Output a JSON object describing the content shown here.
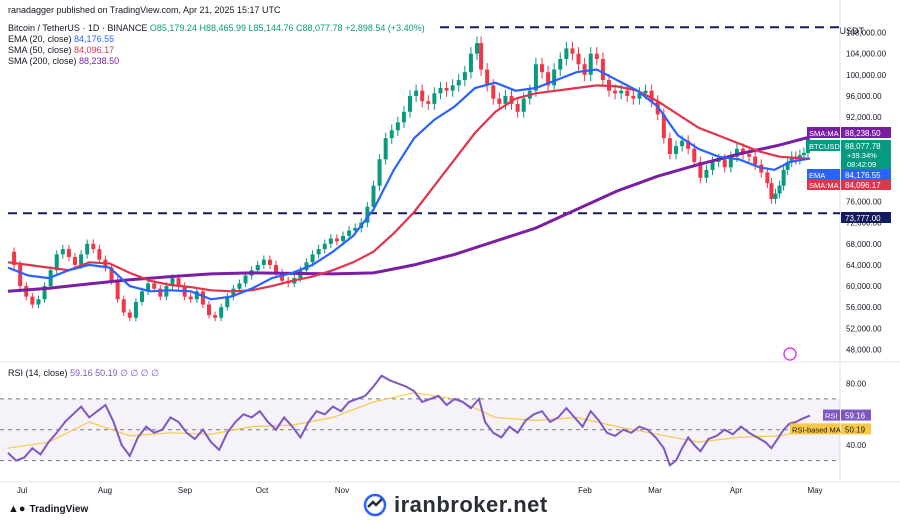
{
  "header": {
    "published": "ranadagger published on TradingView.com, Apr 21, 2025 15:17 UTC",
    "symbol": "Bitcoin / TetherUS · 1D · BINANCE",
    "ohlc": "O85,179.24 H88,465.99 L85,144.76 C88,077.78 +2,898.54 (+3.40%)",
    "ema": "EMA (20, close)",
    "ema_value": "84,176.55",
    "sma50": "SMA (50, close)",
    "sma50_value": "84,096.17",
    "sma200": "SMA (200, close)",
    "sma200_value": "88,238.50",
    "rsi_label": "RSI (14, close)",
    "rsi_values": "59.16 50.19 ∅ ∅ ∅ ∅"
  },
  "axis_unit": "USDT",
  "footer": {
    "brand": "TradingView",
    "watermark": "iranbroker.net"
  },
  "colors": {
    "up": "#089981",
    "down": "#f23645",
    "ema": "#2962ff",
    "sma50": "#e0344b",
    "sma200": "#7b1fa2",
    "rsi": "#7e57c2",
    "rsi_ma": "#f7c948"
  },
  "chart_data": {
    "type": "candlestick",
    "x_labels": [
      "Jul",
      "Aug",
      "Sep",
      "Oct",
      "Nov",
      "Jan",
      "Feb",
      "Mar",
      "Apr",
      "May"
    ],
    "y_ticks": [
      "108,000.00",
      "104,000.00",
      "100,000.00",
      "96,000.00",
      "92,000.00",
      "76,000.00",
      "72,000.00",
      "68,000.00",
      "64,000.00",
      "60,000.00",
      "56,000.00",
      "52,000.00",
      "48,000.00"
    ],
    "ylim": [
      46000,
      110000
    ],
    "support_level": 73777,
    "resistance_level": 109000,
    "price_tags": [
      {
        "label": "SMA:MA",
        "value": "88,238.50",
        "series": "sma200"
      },
      {
        "label": "BTCUSDT",
        "value": "88,077.78",
        "sub1": "+39.34%",
        "sub2": "08:42:09",
        "series": "price"
      },
      {
        "label": "EMA",
        "value": "84,176.55",
        "series": "ema"
      },
      {
        "label": "SMA:MA",
        "value": "84,096.17",
        "series": "sma50"
      },
      {
        "label": "",
        "value": "73,777.00",
        "series": "support"
      }
    ],
    "close_path": [
      [
        0,
        66500
      ],
      [
        6,
        64000
      ],
      [
        12,
        60000
      ],
      [
        18,
        58000
      ],
      [
        24,
        56500
      ],
      [
        30,
        57500
      ],
      [
        36,
        60000
      ],
      [
        42,
        63000
      ],
      [
        48,
        66000
      ],
      [
        54,
        67000
      ],
      [
        60,
        65500
      ],
      [
        66,
        64000
      ],
      [
        72,
        66000
      ],
      [
        78,
        68000
      ],
      [
        84,
        67000
      ],
      [
        90,
        65000
      ],
      [
        96,
        63500
      ],
      [
        102,
        61000
      ],
      [
        108,
        57500
      ],
      [
        114,
        55000
      ],
      [
        120,
        54000
      ],
      [
        126,
        57000
      ],
      [
        132,
        59000
      ],
      [
        138,
        60500
      ],
      [
        144,
        59500
      ],
      [
        150,
        58000
      ],
      [
        156,
        60000
      ],
      [
        162,
        61500
      ],
      [
        168,
        60000
      ],
      [
        174,
        58000
      ],
      [
        180,
        57500
      ],
      [
        186,
        59000
      ],
      [
        192,
        56500
      ],
      [
        198,
        54500
      ],
      [
        204,
        54000
      ],
      [
        210,
        56000
      ],
      [
        216,
        58000
      ],
      [
        222,
        59500
      ],
      [
        228,
        60500
      ],
      [
        234,
        62000
      ],
      [
        240,
        63000
      ],
      [
        246,
        64000
      ],
      [
        252,
        65000
      ],
      [
        258,
        64000
      ],
      [
        264,
        62500
      ],
      [
        270,
        61000
      ],
      [
        276,
        60500
      ],
      [
        282,
        61500
      ],
      [
        288,
        63000
      ],
      [
        294,
        64500
      ],
      [
        300,
        66000
      ],
      [
        306,
        67000
      ],
      [
        312,
        68000
      ],
      [
        318,
        69000
      ],
      [
        324,
        68500
      ],
      [
        330,
        69500
      ],
      [
        336,
        70500
      ],
      [
        342,
        71000
      ],
      [
        348,
        72000
      ],
      [
        354,
        75000
      ],
      [
        360,
        79000
      ],
      [
        366,
        84000
      ],
      [
        372,
        88000
      ],
      [
        378,
        89500
      ],
      [
        384,
        91000
      ],
      [
        390,
        93000
      ],
      [
        396,
        96000
      ],
      [
        402,
        97000
      ],
      [
        408,
        95000
      ],
      [
        414,
        94500
      ],
      [
        420,
        96500
      ],
      [
        426,
        97500
      ],
      [
        432,
        97000
      ],
      [
        438,
        98000
      ],
      [
        444,
        99000
      ],
      [
        450,
        100500
      ],
      [
        456,
        104000
      ],
      [
        462,
        106000
      ],
      [
        466,
        101000
      ],
      [
        472,
        98000
      ],
      [
        478,
        95500
      ],
      [
        484,
        94500
      ],
      [
        490,
        96000
      ],
      [
        496,
        94500
      ],
      [
        502,
        93000
      ],
      [
        508,
        95500
      ],
      [
        514,
        97000
      ],
      [
        520,
        102000
      ],
      [
        526,
        100500
      ],
      [
        532,
        98000
      ],
      [
        538,
        101000
      ],
      [
        544,
        103000
      ],
      [
        550,
        105000
      ],
      [
        556,
        104000
      ],
      [
        562,
        102000
      ],
      [
        568,
        100000
      ],
      [
        574,
        104000
      ],
      [
        580,
        103000
      ],
      [
        586,
        99000
      ],
      [
        592,
        97000
      ],
      [
        598,
        96500
      ],
      [
        604,
        97000
      ],
      [
        610,
        96000
      ],
      [
        616,
        95500
      ],
      [
        622,
        96500
      ],
      [
        628,
        97000
      ],
      [
        634,
        95000
      ],
      [
        640,
        92500
      ],
      [
        646,
        88000
      ],
      [
        652,
        85000
      ],
      [
        658,
        86500
      ],
      [
        664,
        87500
      ],
      [
        670,
        86000
      ],
      [
        676,
        83500
      ],
      [
        682,
        80500
      ],
      [
        688,
        82000
      ],
      [
        694,
        83500
      ],
      [
        700,
        84000
      ],
      [
        706,
        82500
      ],
      [
        712,
        84500
      ],
      [
        718,
        86000
      ],
      [
        724,
        85000
      ],
      [
        730,
        84500
      ],
      [
        736,
        83000
      ],
      [
        742,
        81500
      ],
      [
        748,
        79500
      ],
      [
        752,
        76500
      ],
      [
        756,
        77500
      ],
      [
        760,
        79000
      ],
      [
        764,
        82000
      ],
      [
        768,
        83500
      ],
      [
        772,
        84500
      ],
      [
        776,
        84000
      ],
      [
        780,
        84800
      ],
      [
        784,
        85200
      ],
      [
        788,
        88078
      ]
    ],
    "ema20_path": [
      [
        0,
        63500
      ],
      [
        20,
        62000
      ],
      [
        40,
        61500
      ],
      [
        60,
        63000
      ],
      [
        80,
        64000
      ],
      [
        100,
        63500
      ],
      [
        120,
        60000
      ],
      [
        140,
        59000
      ],
      [
        160,
        59200
      ],
      [
        180,
        59000
      ],
      [
        200,
        57500
      ],
      [
        220,
        58000
      ],
      [
        240,
        59500
      ],
      [
        260,
        61500
      ],
      [
        280,
        62500
      ],
      [
        300,
        64000
      ],
      [
        320,
        66500
      ],
      [
        340,
        69500
      ],
      [
        360,
        74500
      ],
      [
        380,
        82000
      ],
      [
        400,
        88000
      ],
      [
        420,
        91500
      ],
      [
        440,
        94000
      ],
      [
        460,
        97500
      ],
      [
        480,
        98500
      ],
      [
        500,
        97000
      ],
      [
        520,
        97500
      ],
      [
        540,
        99000
      ],
      [
        560,
        100500
      ],
      [
        580,
        101000
      ],
      [
        600,
        99000
      ],
      [
        620,
        97000
      ],
      [
        640,
        94000
      ],
      [
        660,
        88500
      ],
      [
        680,
        86000
      ],
      [
        700,
        84500
      ],
      [
        720,
        84000
      ],
      [
        740,
        82500
      ],
      [
        755,
        82000
      ],
      [
        770,
        83500
      ],
      [
        790,
        84177
      ]
    ],
    "sma50_path": [
      [
        0,
        64500
      ],
      [
        20,
        64000
      ],
      [
        40,
        63500
      ],
      [
        60,
        63000
      ],
      [
        80,
        64500
      ],
      [
        100,
        64300
      ],
      [
        120,
        62500
      ],
      [
        140,
        61000
      ],
      [
        160,
        60200
      ],
      [
        180,
        59800
      ],
      [
        200,
        59200
      ],
      [
        220,
        59000
      ],
      [
        240,
        59200
      ],
      [
        260,
        60000
      ],
      [
        280,
        61000
      ],
      [
        300,
        61800
      ],
      [
        320,
        63000
      ],
      [
        340,
        64500
      ],
      [
        360,
        66500
      ],
      [
        380,
        70000
      ],
      [
        400,
        74000
      ],
      [
        420,
        79000
      ],
      [
        440,
        84000
      ],
      [
        460,
        89000
      ],
      [
        480,
        93000
      ],
      [
        500,
        95500
      ],
      [
        520,
        96500
      ],
      [
        540,
        97000
      ],
      [
        560,
        97500
      ],
      [
        580,
        98000
      ],
      [
        600,
        97800
      ],
      [
        620,
        97000
      ],
      [
        640,
        95000
      ],
      [
        660,
        92500
      ],
      [
        680,
        90000
      ],
      [
        700,
        88500
      ],
      [
        720,
        87000
      ],
      [
        740,
        85500
      ],
      [
        760,
        84500
      ],
      [
        790,
        84096
      ]
    ],
    "sma200_path": [
      [
        0,
        59000
      ],
      [
        40,
        59600
      ],
      [
        80,
        60400
      ],
      [
        120,
        61200
      ],
      [
        160,
        61800
      ],
      [
        200,
        62300
      ],
      [
        240,
        62500
      ],
      [
        280,
        62400
      ],
      [
        320,
        62300
      ],
      [
        360,
        62500
      ],
      [
        400,
        64000
      ],
      [
        440,
        66000
      ],
      [
        480,
        68500
      ],
      [
        520,
        71000
      ],
      [
        560,
        74500
      ],
      [
        600,
        78000
      ],
      [
        640,
        80800
      ],
      [
        680,
        83000
      ],
      [
        720,
        85000
      ],
      [
        760,
        86700
      ],
      [
        790,
        88239
      ]
    ],
    "rsi": {
      "ylim": [
        20,
        90
      ],
      "levels": [
        70,
        50,
        30
      ],
      "ticks": [
        "80.00",
        "40.00"
      ],
      "last": "59.16",
      "ma_last": "50.19",
      "rsi_tag": "RSI",
      "ma_tag": "RSI-based MA",
      "path": [
        [
          0,
          35
        ],
        [
          8,
          30
        ],
        [
          16,
          32
        ],
        [
          24,
          38
        ],
        [
          32,
          34
        ],
        [
          40,
          42
        ],
        [
          48,
          48
        ],
        [
          56,
          55
        ],
        [
          64,
          60
        ],
        [
          72,
          65
        ],
        [
          80,
          58
        ],
        [
          88,
          62
        ],
        [
          96,
          66
        ],
        [
          104,
          55
        ],
        [
          112,
          40
        ],
        [
          120,
          33
        ],
        [
          128,
          45
        ],
        [
          136,
          52
        ],
        [
          144,
          48
        ],
        [
          152,
          50
        ],
        [
          160,
          58
        ],
        [
          168,
          55
        ],
        [
          176,
          48
        ],
        [
          184,
          44
        ],
        [
          192,
          50
        ],
        [
          200,
          42
        ],
        [
          208,
          37
        ],
        [
          216,
          48
        ],
        [
          224,
          55
        ],
        [
          232,
          60
        ],
        [
          240,
          58
        ],
        [
          248,
          62
        ],
        [
          256,
          55
        ],
        [
          264,
          50
        ],
        [
          272,
          58
        ],
        [
          280,
          52
        ],
        [
          288,
          45
        ],
        [
          296,
          55
        ],
        [
          304,
          62
        ],
        [
          312,
          60
        ],
        [
          320,
          65
        ],
        [
          328,
          62
        ],
        [
          336,
          68
        ],
        [
          344,
          70
        ],
        [
          352,
          72
        ],
        [
          360,
          78
        ],
        [
          368,
          85
        ],
        [
          376,
          82
        ],
        [
          384,
          80
        ],
        [
          392,
          78
        ],
        [
          400,
          75
        ],
        [
          408,
          68
        ],
        [
          416,
          70
        ],
        [
          424,
          72
        ],
        [
          432,
          66
        ],
        [
          440,
          70
        ],
        [
          448,
          68
        ],
        [
          456,
          64
        ],
        [
          464,
          70
        ],
        [
          470,
          55
        ],
        [
          478,
          48
        ],
        [
          486,
          45
        ],
        [
          494,
          52
        ],
        [
          502,
          48
        ],
        [
          510,
          56
        ],
        [
          518,
          60
        ],
        [
          526,
          62
        ],
        [
          534,
          55
        ],
        [
          542,
          58
        ],
        [
          550,
          64
        ],
        [
          558,
          58
        ],
        [
          566,
          52
        ],
        [
          574,
          62
        ],
        [
          582,
          56
        ],
        [
          590,
          48
        ],
        [
          598,
          46
        ],
        [
          606,
          50
        ],
        [
          614,
          48
        ],
        [
          622,
          52
        ],
        [
          630,
          50
        ],
        [
          638,
          45
        ],
        [
          646,
          38
        ],
        [
          652,
          27
        ],
        [
          658,
          30
        ],
        [
          664,
          38
        ],
        [
          670,
          45
        ],
        [
          676,
          40
        ],
        [
          682,
          36
        ],
        [
          690,
          44
        ],
        [
          698,
          46
        ],
        [
          706,
          50
        ],
        [
          714,
          47
        ],
        [
          722,
          52
        ],
        [
          730,
          48
        ],
        [
          738,
          45
        ],
        [
          746,
          42
        ],
        [
          752,
          38
        ],
        [
          758,
          44
        ],
        [
          764,
          50
        ],
        [
          770,
          54
        ],
        [
          776,
          55
        ],
        [
          782,
          57
        ],
        [
          790,
          59.16
        ]
      ],
      "ma_path": [
        [
          0,
          38
        ],
        [
          40,
          42
        ],
        [
          80,
          55
        ],
        [
          120,
          46
        ],
        [
          160,
          48
        ],
        [
          200,
          47
        ],
        [
          240,
          52
        ],
        [
          280,
          53
        ],
        [
          320,
          58
        ],
        [
          360,
          68
        ],
        [
          400,
          74
        ],
        [
          440,
          70
        ],
        [
          480,
          58
        ],
        [
          520,
          56
        ],
        [
          560,
          58
        ],
        [
          600,
          52
        ],
        [
          640,
          47
        ],
        [
          680,
          42
        ],
        [
          720,
          45
        ],
        [
          760,
          46
        ],
        [
          790,
          50.19
        ]
      ]
    }
  }
}
